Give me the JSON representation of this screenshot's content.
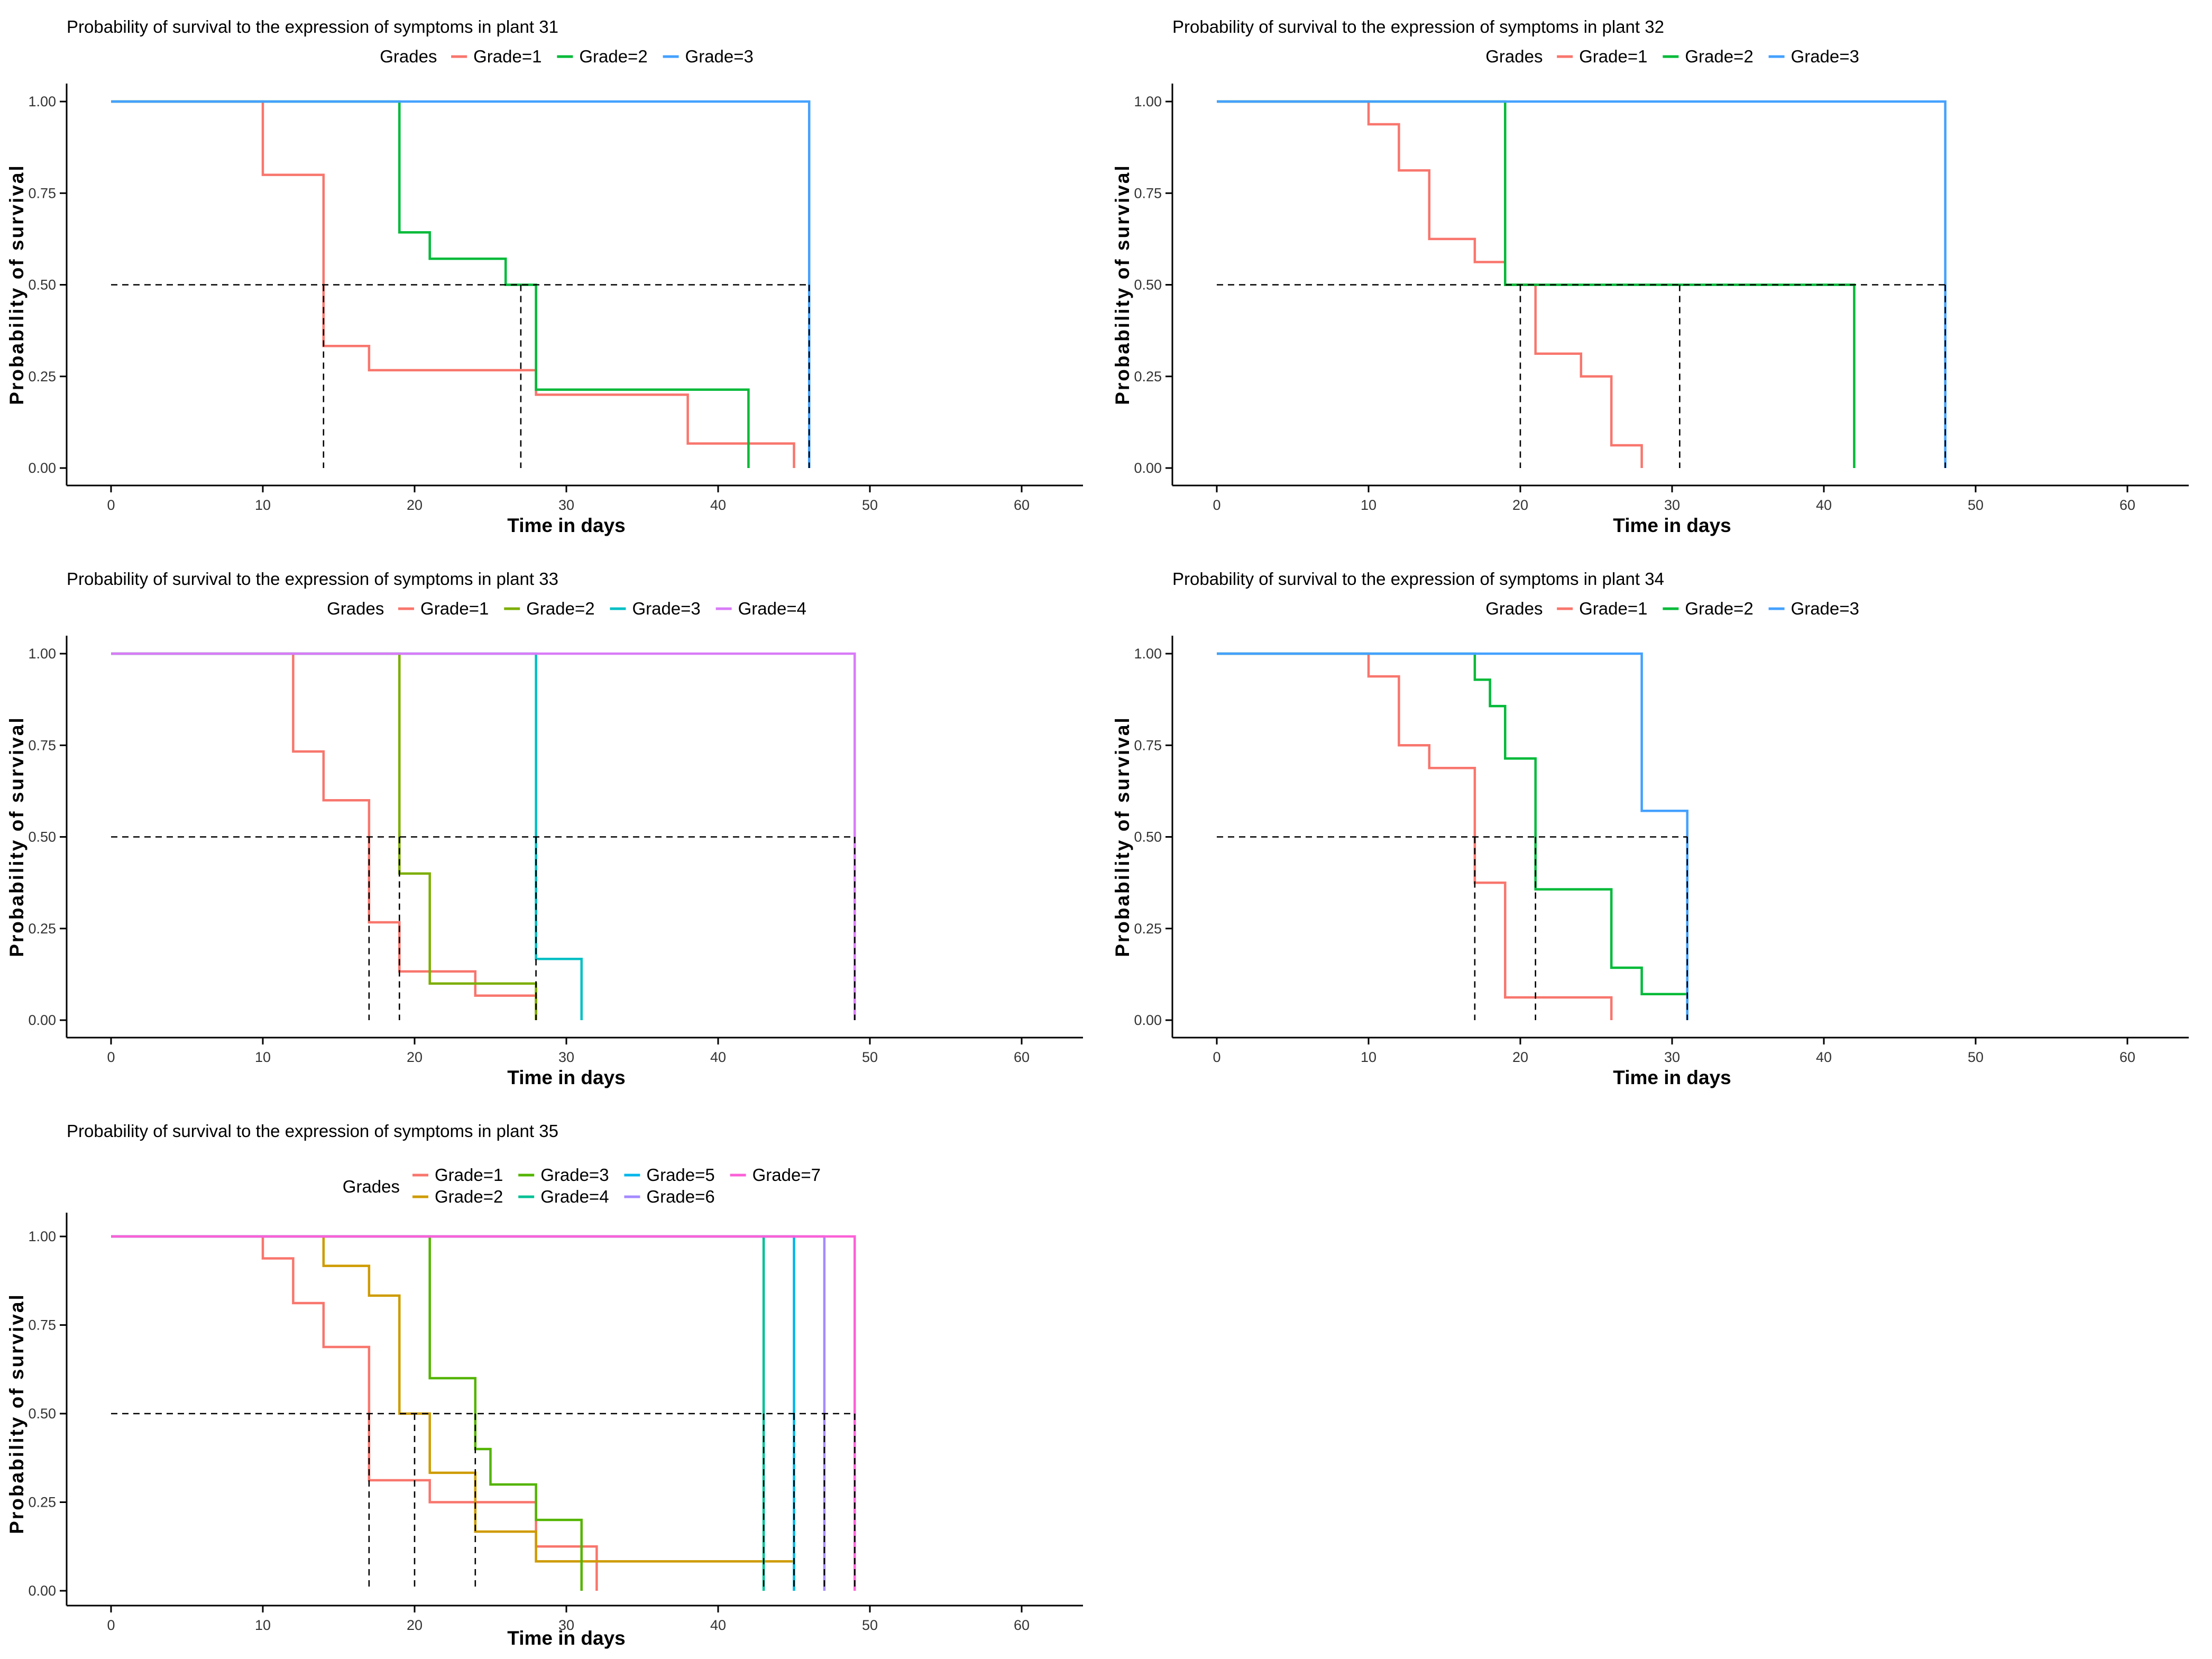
{
  "page": {
    "background": "#ffffff"
  },
  "chart_data": [
    {
      "id": "plant-31",
      "type": "km-step-line",
      "title": "Probability of survival to the expression of symptoms in plant 31",
      "legend_title": "Grades",
      "xlabel": "Time in days",
      "ylabel": "Probability of survival",
      "x_ticks": [
        0,
        10,
        20,
        30,
        40,
        50,
        60
      ],
      "y_ticks": [
        "0.00",
        "0.25",
        "0.50",
        "0.75",
        "1.00"
      ],
      "xlim": [
        0,
        63
      ],
      "ylim": [
        0,
        1
      ],
      "grid": false,
      "legend_position": "top",
      "median_reference": 0.5,
      "legend_rows": [
        [
          "Grade=1",
          "Grade=2",
          "Grade=3"
        ]
      ],
      "series": [
        {
          "name": "Grade=1",
          "color": "#F8766D",
          "drops": [
            [
              10,
              0.8
            ],
            [
              14,
              0.333
            ],
            [
              17,
              0.267
            ],
            [
              28,
              0.2
            ],
            [
              38,
              0.067
            ],
            [
              45,
              0
            ]
          ]
        },
        {
          "name": "Grade=2",
          "color": "#00BA38",
          "drops": [
            [
              19,
              0.643
            ],
            [
              21,
              0.571
            ],
            [
              26,
              0.5
            ],
            [
              28,
              0.214
            ],
            [
              42,
              0
            ]
          ]
        },
        {
          "name": "Grade=3",
          "color": "#44A1FF",
          "drops": [
            [
              46,
              0
            ]
          ]
        }
      ],
      "medians": [
        14,
        27,
        46
      ]
    },
    {
      "id": "plant-32",
      "type": "km-step-line",
      "title": "Probability of survival to the expression of symptoms in plant 32",
      "legend_title": "Grades",
      "xlabel": "Time in days",
      "ylabel": "Probability of survival",
      "x_ticks": [
        0,
        10,
        20,
        30,
        40,
        50,
        60
      ],
      "y_ticks": [
        "0.00",
        "0.25",
        "0.50",
        "0.75",
        "1.00"
      ],
      "xlim": [
        0,
        63
      ],
      "ylim": [
        0,
        1
      ],
      "grid": false,
      "legend_position": "top",
      "median_reference": 0.5,
      "legend_rows": [
        [
          "Grade=1",
          "Grade=2",
          "Grade=3"
        ]
      ],
      "series": [
        {
          "name": "Grade=1",
          "color": "#F8766D",
          "drops": [
            [
              10,
              0.938
            ],
            [
              12,
              0.812
            ],
            [
              14,
              0.625
            ],
            [
              17,
              0.562
            ],
            [
              19,
              0.5
            ],
            [
              21,
              0.312
            ],
            [
              24,
              0.25
            ],
            [
              26,
              0.062
            ],
            [
              28,
              0
            ]
          ]
        },
        {
          "name": "Grade=2",
          "color": "#00BA38",
          "drops": [
            [
              19,
              0.5
            ],
            [
              42,
              0
            ]
          ]
        },
        {
          "name": "Grade=3",
          "color": "#44A1FF",
          "drops": [
            [
              48,
              0
            ]
          ]
        }
      ],
      "medians": [
        20,
        30.5,
        48
      ]
    },
    {
      "id": "plant-33",
      "type": "km-step-line",
      "title": "Probability of survival to the expression of symptoms in plant 33",
      "legend_title": "Grades",
      "xlabel": "Time in days",
      "ylabel": "Probability of survival",
      "x_ticks": [
        0,
        10,
        20,
        30,
        40,
        50,
        60
      ],
      "y_ticks": [
        "0.00",
        "0.25",
        "0.50",
        "0.75",
        "1.00"
      ],
      "xlim": [
        0,
        63
      ],
      "ylim": [
        0,
        1
      ],
      "grid": false,
      "legend_position": "top",
      "median_reference": 0.5,
      "legend_rows": [
        [
          "Grade=1",
          "Grade=2",
          "Grade=3",
          "Grade=4"
        ]
      ],
      "series": [
        {
          "name": "Grade=1",
          "color": "#F8766D",
          "drops": [
            [
              12,
              0.733
            ],
            [
              14,
              0.6
            ],
            [
              17,
              0.267
            ],
            [
              19,
              0.133
            ],
            [
              24,
              0.067
            ],
            [
              28,
              0
            ]
          ]
        },
        {
          "name": "Grade=2",
          "color": "#7CAE00",
          "drops": [
            [
              19,
              0.4
            ],
            [
              21,
              0.1
            ],
            [
              28,
              0
            ]
          ]
        },
        {
          "name": "Grade=3",
          "color": "#00BFC4",
          "drops": [
            [
              28,
              0.167
            ],
            [
              31,
              0
            ]
          ]
        },
        {
          "name": "Grade=4",
          "color": "#D97BF7",
          "drops": [
            [
              49,
              0
            ]
          ]
        }
      ],
      "medians": [
        17,
        19,
        28,
        49
      ]
    },
    {
      "id": "plant-34",
      "type": "km-step-line",
      "title": "Probability of survival to the expression of symptoms in plant 34",
      "legend_title": "Grades",
      "xlabel": "Time in days",
      "ylabel": "Probability of survival",
      "x_ticks": [
        0,
        10,
        20,
        30,
        40,
        50,
        60
      ],
      "y_ticks": [
        "0.00",
        "0.25",
        "0.50",
        "0.75",
        "1.00"
      ],
      "xlim": [
        0,
        63
      ],
      "ylim": [
        0,
        1
      ],
      "grid": false,
      "legend_position": "top",
      "median_reference": 0.5,
      "legend_rows": [
        [
          "Grade=1",
          "Grade=2",
          "Grade=3"
        ]
      ],
      "series": [
        {
          "name": "Grade=1",
          "color": "#F8766D",
          "drops": [
            [
              10,
              0.938
            ],
            [
              12,
              0.75
            ],
            [
              14,
              0.688
            ],
            [
              17,
              0.375
            ],
            [
              19,
              0.062
            ],
            [
              26,
              0
            ]
          ]
        },
        {
          "name": "Grade=2",
          "color": "#00BA38",
          "drops": [
            [
              17,
              0.929
            ],
            [
              18,
              0.857
            ],
            [
              19,
              0.714
            ],
            [
              21,
              0.357
            ],
            [
              26,
              0.143
            ],
            [
              28,
              0.071
            ],
            [
              31,
              0
            ]
          ]
        },
        {
          "name": "Grade=3",
          "color": "#44A1FF",
          "drops": [
            [
              28,
              0.571
            ],
            [
              31,
              0
            ]
          ]
        }
      ],
      "medians": [
        17,
        21,
        31
      ]
    },
    {
      "id": "plant-35",
      "type": "km-step-line",
      "title": "Probability of survival to the expression of symptoms in plant 35",
      "legend_title": "Grades",
      "xlabel": "Time in days",
      "ylabel": "Probability of survival",
      "x_ticks": [
        0,
        10,
        20,
        30,
        40,
        50,
        60
      ],
      "y_ticks": [
        "0.00",
        "0.25",
        "0.50",
        "0.75",
        "1.00"
      ],
      "xlim": [
        0,
        63
      ],
      "ylim": [
        0,
        1
      ],
      "grid": false,
      "legend_position": "top",
      "median_reference": 0.5,
      "legend_rows": [
        [
          "Grade=1",
          "Grade=3",
          "Grade=5",
          "Grade=7"
        ],
        [
          "Grade=2",
          "Grade=4",
          "Grade=6"
        ]
      ],
      "series": [
        {
          "name": "Grade=1",
          "color": "#F8766D",
          "drops": [
            [
              10,
              0.938
            ],
            [
              12,
              0.812
            ],
            [
              14,
              0.688
            ],
            [
              17,
              0.312
            ],
            [
              21,
              0.25
            ],
            [
              28,
              0.125
            ],
            [
              32,
              0
            ]
          ]
        },
        {
          "name": "Grade=2",
          "color": "#CE9B00",
          "drops": [
            [
              14,
              0.917
            ],
            [
              17,
              0.833
            ],
            [
              19,
              0.5
            ],
            [
              21,
              0.333
            ],
            [
              24,
              0.167
            ],
            [
              28,
              0.083
            ],
            [
              45,
              0
            ]
          ]
        },
        {
          "name": "Grade=3",
          "color": "#53B400",
          "drops": [
            [
              21,
              0.6
            ],
            [
              24,
              0.4
            ],
            [
              25,
              0.3
            ],
            [
              28,
              0.2
            ],
            [
              31,
              0
            ]
          ]
        },
        {
          "name": "Grade=4",
          "color": "#00C094",
          "drops": [
            [
              43,
              0
            ]
          ]
        },
        {
          "name": "Grade=5",
          "color": "#00B6EB",
          "drops": [
            [
              45,
              0
            ]
          ]
        },
        {
          "name": "Grade=6",
          "color": "#A58AFF",
          "drops": [
            [
              47,
              0
            ]
          ]
        },
        {
          "name": "Grade=7",
          "color": "#FB61D7",
          "drops": [
            [
              49,
              0
            ]
          ]
        }
      ],
      "medians": [
        17,
        20,
        24,
        43,
        45,
        47,
        49
      ]
    }
  ]
}
